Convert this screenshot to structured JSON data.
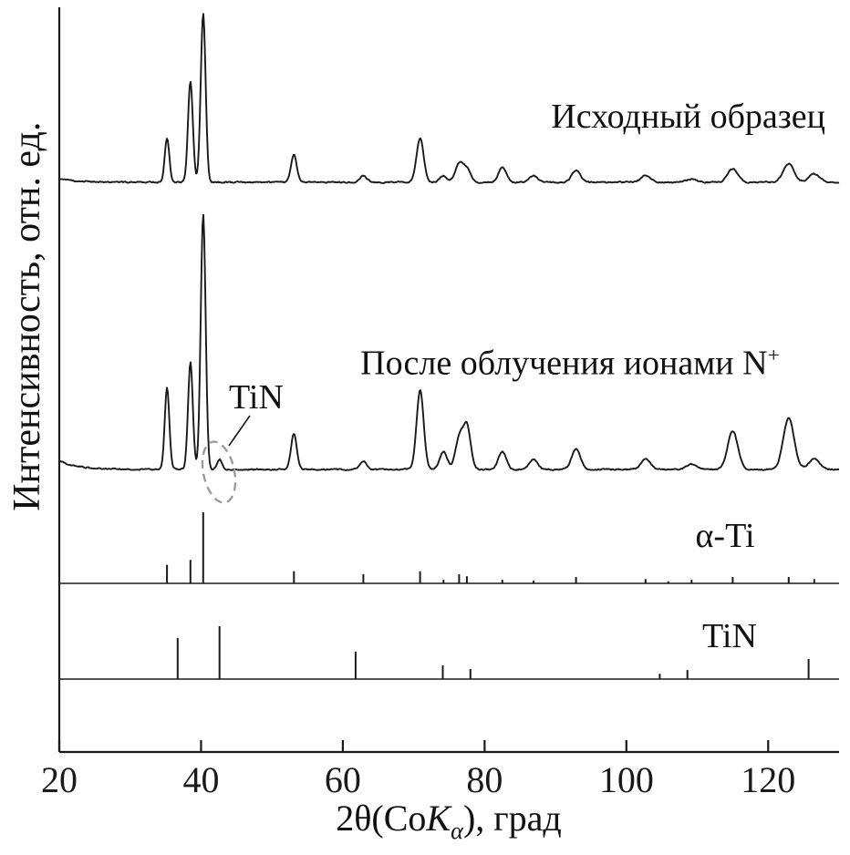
{
  "meta": {
    "background": "#ffffff",
    "line_color": "#1a1a1a",
    "ellipse_color": "#9b9b9b"
  },
  "axis": {
    "x_label": {
      "pre": "2θ(Co",
      "k": "K",
      "sub": "α",
      "post": "), град"
    }
  },
  "labels": {
    "trace_irradiated": {
      "text": "После облучения ионами N",
      "sup": "+"
    }
  },
  "chart_data": {
    "type": "line",
    "subtype": "xrd-diffractogram-stack",
    "xlabel": "2θ(CoKα), град",
    "ylabel": "Интенсивность, отн. ед.",
    "x_range": [
      20,
      130
    ],
    "x_ticks": [
      20,
      40,
      60,
      80,
      100,
      120
    ],
    "legend_position": "labels-inside-plot",
    "grid": false,
    "series": [
      {
        "name": "Исходный образец",
        "kind": "measured-trace",
        "two_theta": [
          35.2,
          38.5,
          40.3,
          53.1,
          62.9,
          70.9,
          74.2,
          76.4,
          77.5,
          82.5,
          86.9,
          92.9,
          102.7,
          109.2,
          115.0,
          122.9,
          126.5
        ],
        "intensity": [
          26,
          60,
          100,
          16,
          4,
          26,
          4,
          11,
          8,
          9,
          4,
          7,
          4,
          2,
          8,
          11,
          5
        ]
      },
      {
        "name": "После облучения ионами N+",
        "kind": "measured-trace",
        "two_theta": [
          35.2,
          38.5,
          40.3,
          42.6,
          53.1,
          62.9,
          70.9,
          74.2,
          76.4,
          77.5,
          82.5,
          86.9,
          92.9,
          102.7,
          109.2,
          115.0,
          122.9,
          126.5
        ],
        "intensity": [
          32,
          42,
          100,
          4,
          14,
          3,
          31,
          7,
          12,
          17,
          7,
          4,
          8,
          4,
          2,
          15,
          20,
          4
        ]
      },
      {
        "name": "α-Ti",
        "kind": "reference-sticks",
        "two_theta": [
          35.2,
          38.5,
          40.3,
          53.1,
          62.9,
          70.9,
          74.2,
          76.4,
          77.5,
          82.5,
          86.9,
          92.9,
          102.7,
          105.9,
          109.2,
          115.0,
          122.9,
          126.5
        ],
        "intensity": [
          26,
          33,
          100,
          17,
          13,
          17,
          5,
          13,
          10,
          5,
          4,
          9,
          6,
          3,
          5,
          9,
          9,
          6
        ]
      },
      {
        "name": "TiN",
        "kind": "reference-sticks",
        "two_theta": [
          36.7,
          42.6,
          61.8,
          74.1,
          78.0,
          104.7,
          108.6,
          125.7
        ],
        "intensity": [
          78,
          100,
          52,
          26,
          19,
          10,
          17,
          38
        ]
      }
    ],
    "annotations": [
      {
        "text": "TiN",
        "two_theta": 42.6,
        "marker": "dashed-ellipse"
      }
    ]
  }
}
